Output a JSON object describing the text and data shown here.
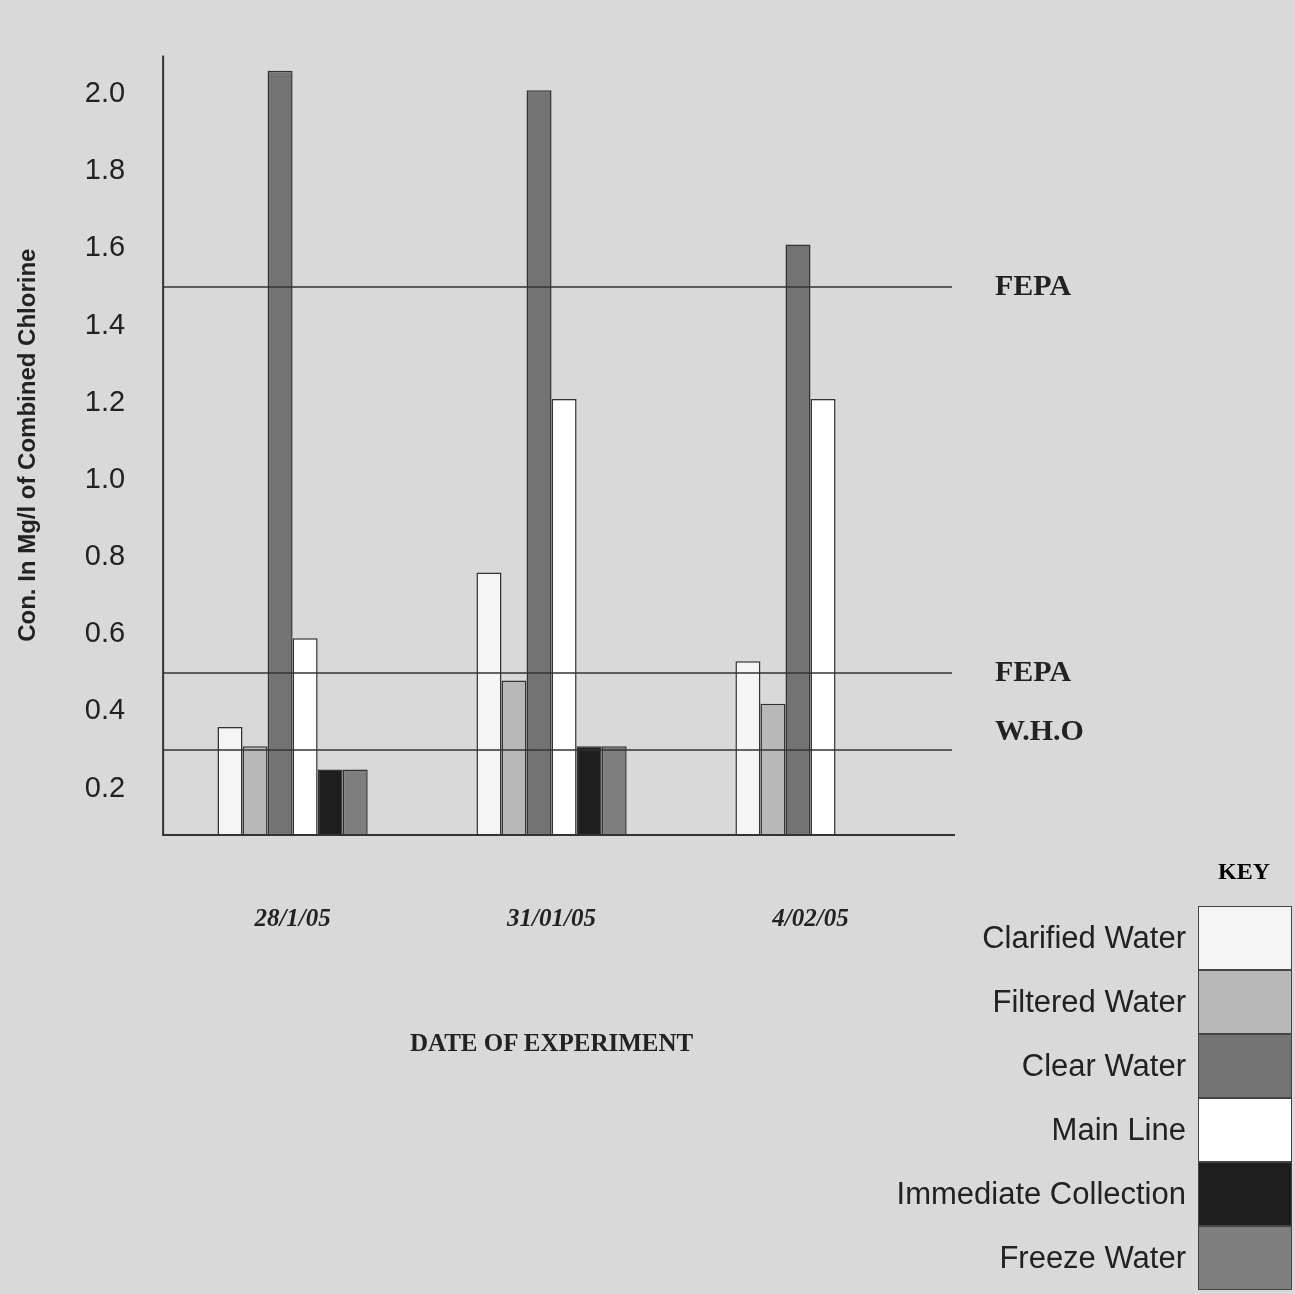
{
  "chart_data": {
    "type": "bar",
    "xlabel": "DATE OF EXPERIMENT",
    "ylabel": "Con. In Mg/l of Combined Chlorine",
    "legend_title": "KEY",
    "legend": "bottom right",
    "grid": false,
    "categories": [
      "28/1/05",
      "31/01/05",
      "4/02/05"
    ],
    "series": [
      {
        "name": "Clarified Water",
        "color": "#f5f5f5",
        "values": [
          0.36,
          0.76,
          0.53
        ]
      },
      {
        "name": "Filtered Water",
        "color": "#b8b8b8",
        "values": [
          0.31,
          0.48,
          0.42
        ]
      },
      {
        "name": "Clear Water",
        "color": "#737373",
        "values": [
          2.06,
          2.01,
          1.61
        ]
      },
      {
        "name": "Main Line",
        "color": "#ffffff",
        "values": [
          0.59,
          1.21,
          1.21
        ]
      },
      {
        "name": "Immediate Collection",
        "color": "#1e1e1e",
        "values": [
          0.25,
          0.31,
          null
        ]
      },
      {
        "name": "Freeze Water",
        "color": "#7e7e7e",
        "values": [
          0.25,
          0.31,
          null
        ]
      }
    ],
    "ylim": [
      0.08,
      2.1
    ],
    "yticks": [
      0.2,
      0.4,
      0.6,
      0.8,
      {
        "value": 1,
        "label": "1.0"
      },
      1.2,
      1.4,
      1.6,
      1.8,
      {
        "value": 2,
        "label": "2.0"
      }
    ],
    "ref_lines": [
      {
        "axis": "y",
        "value": 1.5,
        "label": "FEPA"
      },
      {
        "axis": "y",
        "value": 0.5,
        "label": "FEPA"
      },
      {
        "axis": "y",
        "value": 0.3,
        "label": "W.H.O"
      }
    ]
  }
}
